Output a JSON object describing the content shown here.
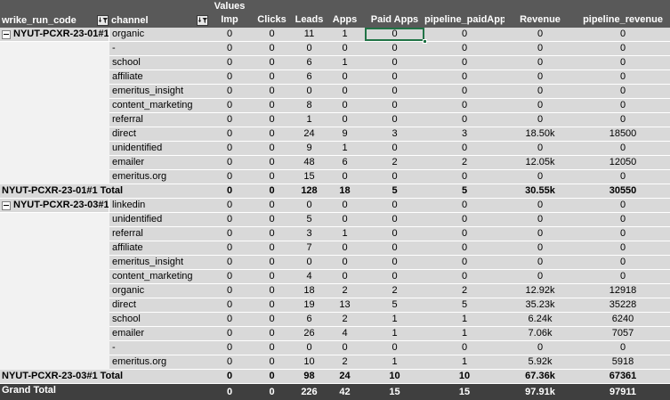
{
  "header": {
    "values_label": "Values"
  },
  "columns": [
    {
      "key": "wrike_run_code",
      "label": "wrike_run_code",
      "has_filter_button": true
    },
    {
      "key": "channel",
      "label": "channel",
      "has_filter_button": true
    },
    {
      "key": "imp",
      "label": "Imp"
    },
    {
      "key": "clicks",
      "label": "Clicks"
    },
    {
      "key": "leads",
      "label": "Leads"
    },
    {
      "key": "apps",
      "label": "Apps"
    },
    {
      "key": "paid_apps",
      "label": "Paid Apps"
    },
    {
      "key": "pipeline_paidApp",
      "label": "pipeline_paidApp"
    },
    {
      "key": "revenue",
      "label": "Revenue"
    },
    {
      "key": "pipeline_revenue",
      "label": "pipeline_revenue"
    }
  ],
  "groups": [
    {
      "code": "NYUT-PCXR-23-01#1",
      "collapsed": false,
      "rows": [
        {
          "channel": "organic",
          "values": [
            "0",
            "0",
            "11",
            "1",
            "0",
            "0",
            "0",
            "0"
          ]
        },
        {
          "channel": "-",
          "values": [
            "0",
            "0",
            "0",
            "0",
            "0",
            "0",
            "0",
            "0"
          ]
        },
        {
          "channel": "school",
          "values": [
            "0",
            "0",
            "6",
            "1",
            "0",
            "0",
            "0",
            "0"
          ]
        },
        {
          "channel": "affiliate",
          "values": [
            "0",
            "0",
            "6",
            "0",
            "0",
            "0",
            "0",
            "0"
          ]
        },
        {
          "channel": "emeritus_insight",
          "values": [
            "0",
            "0",
            "0",
            "0",
            "0",
            "0",
            "0",
            "0"
          ]
        },
        {
          "channel": "content_marketing",
          "values": [
            "0",
            "0",
            "8",
            "0",
            "0",
            "0",
            "0",
            "0"
          ]
        },
        {
          "channel": "referral",
          "values": [
            "0",
            "0",
            "1",
            "0",
            "0",
            "0",
            "0",
            "0"
          ]
        },
        {
          "channel": "direct",
          "values": [
            "0",
            "0",
            "24",
            "9",
            "3",
            "3",
            "18.50k",
            "18500"
          ]
        },
        {
          "channel": "unidentified",
          "values": [
            "0",
            "0",
            "9",
            "1",
            "0",
            "0",
            "0",
            "0"
          ]
        },
        {
          "channel": "emailer",
          "values": [
            "0",
            "0",
            "48",
            "6",
            "2",
            "2",
            "12.05k",
            "12050"
          ]
        },
        {
          "channel": "emeritus.org",
          "values": [
            "0",
            "0",
            "15",
            "0",
            "0",
            "0",
            "0",
            "0"
          ]
        }
      ],
      "total": {
        "label": "NYUT-PCXR-23-01#1 Total",
        "values": [
          "0",
          "0",
          "128",
          "18",
          "5",
          "5",
          "30.55k",
          "30550"
        ]
      }
    },
    {
      "code": "NYUT-PCXR-23-03#1",
      "collapsed": false,
      "rows": [
        {
          "channel": "linkedin",
          "values": [
            "0",
            "0",
            "0",
            "0",
            "0",
            "0",
            "0",
            "0"
          ]
        },
        {
          "channel": "unidentified",
          "values": [
            "0",
            "0",
            "5",
            "0",
            "0",
            "0",
            "0",
            "0"
          ]
        },
        {
          "channel": "referral",
          "values": [
            "0",
            "0",
            "3",
            "1",
            "0",
            "0",
            "0",
            "0"
          ]
        },
        {
          "channel": "affiliate",
          "values": [
            "0",
            "0",
            "7",
            "0",
            "0",
            "0",
            "0",
            "0"
          ]
        },
        {
          "channel": "emeritus_insight",
          "values": [
            "0",
            "0",
            "0",
            "0",
            "0",
            "0",
            "0",
            "0"
          ]
        },
        {
          "channel": "content_marketing",
          "values": [
            "0",
            "0",
            "4",
            "0",
            "0",
            "0",
            "0",
            "0"
          ]
        },
        {
          "channel": "organic",
          "values": [
            "0",
            "0",
            "18",
            "2",
            "2",
            "2",
            "12.92k",
            "12918"
          ]
        },
        {
          "channel": "direct",
          "values": [
            "0",
            "0",
            "19",
            "13",
            "5",
            "5",
            "35.23k",
            "35228"
          ]
        },
        {
          "channel": "school",
          "values": [
            "0",
            "0",
            "6",
            "2",
            "1",
            "1",
            "6.24k",
            "6240"
          ]
        },
        {
          "channel": "emailer",
          "values": [
            "0",
            "0",
            "26",
            "4",
            "1",
            "1",
            "7.06k",
            "7057"
          ]
        },
        {
          "channel": "-",
          "values": [
            "0",
            "0",
            "0",
            "0",
            "0",
            "0",
            "0",
            "0"
          ]
        },
        {
          "channel": "emeritus.org",
          "values": [
            "0",
            "0",
            "10",
            "2",
            "1",
            "1",
            "5.92k",
            "5918"
          ]
        }
      ],
      "total": {
        "label": "NYUT-PCXR-23-03#1 Total",
        "values": [
          "0",
          "0",
          "98",
          "24",
          "10",
          "10",
          "67.36k",
          "67361"
        ]
      }
    }
  ],
  "grand_total": {
    "label": "Grand Total",
    "values": [
      "0",
      "0",
      "226",
      "42",
      "15",
      "15",
      "97.91k",
      "97911"
    ]
  },
  "selection": {
    "group_index": 0,
    "row_index": 0,
    "value_index": 4
  },
  "colors": {
    "header_bg": "#595959",
    "grand_bg": "#3F3F3F",
    "row_bg": "#D9D9D9",
    "left_col_bg": "#F2F2F2",
    "gridline": "#FFFFFF",
    "selection": "#217346"
  }
}
